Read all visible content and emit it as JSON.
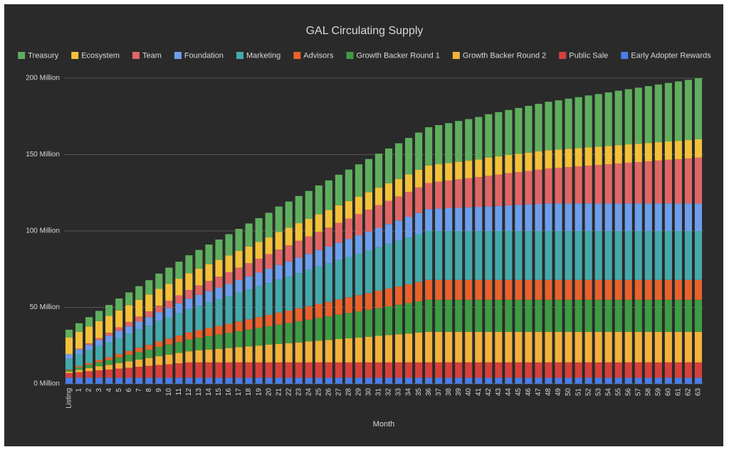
{
  "chart_data": {
    "type": "stacked_bar",
    "title": "GAL Circulating Supply",
    "x_label": "Month",
    "categories": [
      "Listing",
      "1",
      "2",
      "3",
      "4",
      "5",
      "6",
      "7",
      "8",
      "9",
      "10",
      "11",
      "12",
      "13",
      "14",
      "15",
      "16",
      "17",
      "18",
      "19",
      "20",
      "21",
      "22",
      "23",
      "24",
      "25",
      "26",
      "27",
      "28",
      "29",
      "30",
      "31",
      "32",
      "33",
      "34",
      "35",
      "36",
      "37",
      "38",
      "39",
      "40",
      "41",
      "42",
      "43",
      "44",
      "45",
      "46",
      "47",
      "48",
      "49",
      "50",
      "51",
      "52",
      "53",
      "54",
      "55",
      "56",
      "57",
      "58",
      "59",
      "60",
      "61",
      "62",
      "63"
    ],
    "ylim": [
      0,
      200
    ],
    "yticks": [
      {
        "value": 0,
        "label": "0 Million"
      },
      {
        "value": 50,
        "label": "50 Million"
      },
      {
        "value": 100,
        "label": "100 Million"
      },
      {
        "value": 150,
        "label": "150 Million"
      },
      {
        "value": 200,
        "label": "200 Million"
      }
    ],
    "grid": true,
    "legend": "top",
    "series": [
      {
        "name": "Treasury",
        "color": "#5fae5f",
        "values": [
          5,
          5.6,
          6.1,
          6.7,
          7.2,
          7.8,
          8.3,
          8.9,
          9.4,
          10,
          10.6,
          11.1,
          11.7,
          12.2,
          12.8,
          13.3,
          13.9,
          14.4,
          15,
          15.6,
          16.1,
          16.7,
          17.2,
          17.8,
          18.3,
          18.9,
          19.4,
          20,
          20.6,
          21.1,
          21.7,
          22.2,
          22.8,
          23.3,
          23.9,
          24.4,
          25,
          25.6,
          26.1,
          26.7,
          27.2,
          27.8,
          28.3,
          28.9,
          29.4,
          30,
          30.6,
          31.1,
          31.7,
          32.2,
          32.8,
          33.3,
          33.9,
          34.4,
          35,
          35.6,
          36.1,
          36.7,
          37.2,
          37.8,
          38.3,
          38.9,
          39.4,
          40
        ]
      },
      {
        "name": "Ecosystem",
        "color": "#f3c13a",
        "values": [
          11,
          11,
          11,
          11,
          11,
          11,
          11,
          11,
          11,
          11,
          11,
          11,
          11,
          11,
          11,
          11,
          11,
          11,
          11,
          11,
          11,
          11.5,
          11.5,
          11.5,
          11.5,
          11.5,
          11.5,
          11.5,
          11.5,
          11.5,
          11.5,
          11.5,
          11.5,
          11.5,
          11.5,
          11.5,
          11.5,
          11.5,
          11.5,
          11.5,
          11.5,
          11.5,
          12,
          12,
          12,
          12,
          12,
          12,
          12,
          12,
          12,
          12,
          12,
          12,
          12,
          12,
          12,
          12,
          12,
          12,
          12,
          12,
          12,
          12
        ]
      },
      {
        "name": "Team",
        "color": "#e06666",
        "values": [
          0,
          0.5,
          1,
          1.4,
          1.9,
          2.4,
          2.9,
          3.3,
          3.8,
          4.3,
          4.8,
          5.2,
          5.7,
          6.2,
          6.7,
          7.1,
          7.6,
          8.1,
          8.6,
          9,
          9.5,
          10,
          10.5,
          11,
          11.4,
          11.9,
          12.4,
          12.9,
          13.3,
          13.8,
          14.3,
          14.8,
          15.2,
          15.7,
          16.2,
          16.7,
          17.1,
          17.6,
          18.1,
          18.6,
          19,
          19.5,
          20,
          20.5,
          21,
          21.4,
          21.9,
          22.4,
          22.9,
          23.3,
          23.8,
          24.3,
          24.8,
          25.2,
          25.7,
          26.2,
          26.7,
          27.1,
          27.6,
          28.1,
          28.6,
          29,
          29.5,
          30
        ]
      },
      {
        "name": "Foundation",
        "color": "#6d9eeb",
        "values": [
          3,
          3.3,
          3.6,
          3.9,
          4.3,
          4.6,
          4.9,
          5.2,
          5.5,
          5.8,
          6.1,
          6.4,
          6.8,
          7.1,
          7.4,
          7.7,
          8,
          8.3,
          8.6,
          8.9,
          9.3,
          9.6,
          9.9,
          10.2,
          10.5,
          10.8,
          11.1,
          11.4,
          11.8,
          12.1,
          12.4,
          12.7,
          13,
          13.3,
          13.6,
          13.9,
          14.3,
          14.6,
          14.9,
          15.2,
          15.5,
          15.8,
          16.1,
          16.4,
          16.8,
          17.1,
          17.4,
          17.7,
          18,
          18,
          18,
          18,
          18,
          18,
          18,
          18,
          18,
          18,
          18,
          18,
          18,
          18,
          18,
          18
        ]
      },
      {
        "name": "Marketing",
        "color": "#45a9ab",
        "values": [
          7,
          7.7,
          8.4,
          9.1,
          9.8,
          10.5,
          11.2,
          11.9,
          12.6,
          13.3,
          13.9,
          14.6,
          15.3,
          16,
          16.7,
          17.4,
          18.1,
          18.8,
          19.5,
          20.2,
          20.9,
          21.6,
          22.3,
          23,
          23.7,
          24.4,
          25.1,
          25.8,
          26.4,
          27.1,
          27.8,
          28.5,
          29.2,
          29.9,
          30.6,
          31.3,
          32,
          32,
          32,
          32,
          32,
          32,
          32,
          32,
          32,
          32,
          32,
          32,
          32,
          32,
          32,
          32,
          32,
          32,
          32,
          32,
          32,
          32,
          32,
          32,
          32,
          32,
          32,
          32
        ]
      },
      {
        "name": "Advisors",
        "color": "#e8622c",
        "values": [
          0.4,
          0.8,
          1.1,
          1.5,
          1.8,
          2.2,
          2.5,
          2.9,
          3.2,
          3.6,
          3.9,
          4.3,
          4.6,
          5,
          5.3,
          5.7,
          6,
          6.4,
          6.7,
          7.1,
          7.4,
          7.8,
          8.1,
          8.5,
          8.8,
          9.2,
          9.5,
          9.9,
          10.2,
          10.6,
          10.9,
          11.3,
          11.6,
          12,
          12.3,
          12.7,
          13,
          13,
          13,
          13,
          13,
          13,
          13,
          13,
          13,
          13,
          13,
          13,
          13,
          13,
          13,
          13,
          13,
          13,
          13,
          13,
          13,
          13,
          13,
          13,
          13,
          13,
          13,
          13
        ]
      },
      {
        "name": "Growth Backer Round 1",
        "color": "#3f9b45",
        "values": [
          1,
          1.6,
          2.1,
          2.7,
          3.2,
          3.8,
          4.3,
          4.9,
          5.4,
          6,
          6.6,
          7.1,
          7.7,
          8.2,
          8.8,
          9.3,
          9.9,
          10.4,
          11,
          11.6,
          12.1,
          12.7,
          13.2,
          13.8,
          14.3,
          14.9,
          15.4,
          16,
          16.6,
          17.1,
          17.7,
          18.2,
          18.8,
          19.3,
          19.9,
          20.4,
          21,
          21,
          21,
          21,
          21,
          21,
          21,
          21,
          21,
          21,
          21,
          21,
          21,
          21,
          21,
          21,
          21,
          21,
          21,
          21,
          21,
          21,
          21,
          21,
          21,
          21,
          21,
          21
        ]
      },
      {
        "name": "Growth Backer Round 2",
        "color": "#f2b23c",
        "values": [
          1,
          1.5,
          2.1,
          2.6,
          3.1,
          3.6,
          4.2,
          4.7,
          5.2,
          5.8,
          6.3,
          6.8,
          7.3,
          7.9,
          8.4,
          8.9,
          9.4,
          10,
          10.5,
          11,
          11.6,
          12.1,
          12.6,
          13.1,
          13.7,
          14.2,
          14.7,
          15.3,
          15.8,
          16.3,
          16.8,
          17.4,
          17.9,
          18.4,
          18.9,
          19.5,
          20,
          20,
          20,
          20,
          20,
          20,
          20,
          20,
          20,
          20,
          20,
          20,
          20,
          20,
          20,
          20,
          20,
          20,
          20,
          20,
          20,
          20,
          20,
          20,
          20,
          20,
          20,
          20
        ]
      },
      {
        "name": "Public Sale",
        "color": "#d6403a",
        "values": [
          3,
          3.6,
          4.2,
          4.8,
          5.3,
          5.9,
          6.5,
          7.1,
          7.7,
          8.3,
          8.8,
          9.4,
          10,
          10,
          10,
          10,
          10,
          10,
          10,
          10,
          10,
          10,
          10,
          10,
          10,
          10,
          10,
          10,
          10,
          10,
          10,
          10,
          10,
          10,
          10,
          10,
          10,
          10,
          10,
          10,
          10,
          10,
          10,
          10,
          10,
          10,
          10,
          10,
          10,
          10,
          10,
          10,
          10,
          10,
          10,
          10,
          10,
          10,
          10,
          10,
          10,
          10,
          10,
          10
        ]
      },
      {
        "name": "Early Adopter Rewards",
        "color": "#4a7de6",
        "values": [
          4,
          4,
          4,
          4,
          4,
          4,
          4,
          4,
          4,
          4,
          4,
          4,
          4,
          4,
          4,
          4,
          4,
          4,
          4,
          4,
          4,
          4,
          4,
          4,
          4,
          4,
          4,
          4,
          4,
          4,
          4,
          4,
          4,
          4,
          4,
          4,
          4,
          4,
          4,
          4,
          4,
          4,
          4,
          4,
          4,
          4,
          4,
          4,
          4,
          4,
          4,
          4,
          4,
          4,
          4,
          4,
          4,
          4,
          4,
          4,
          4,
          4,
          4,
          4
        ]
      }
    ]
  }
}
